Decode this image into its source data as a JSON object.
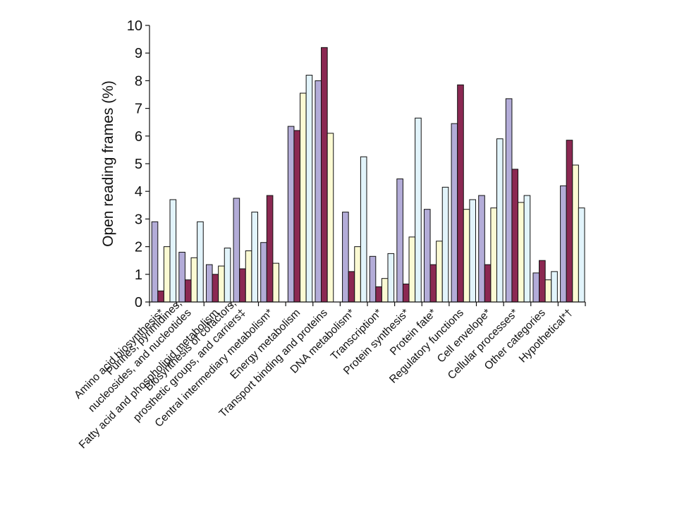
{
  "chart_data": {
    "type": "bar",
    "ylabel": "Open reading frames (%)",
    "ylim": [
      0,
      10
    ],
    "yticks": [
      0,
      1,
      2,
      3,
      4,
      5,
      6,
      7,
      8,
      9,
      10
    ],
    "grid": false,
    "legend": "none",
    "categories": [
      [
        "Amino acid biosynthesis*"
      ],
      [
        "Purines, pyrimidines,",
        "nucleosides, and nucleotides"
      ],
      [
        "Fatty acid and phospholipid metabolism"
      ],
      [
        "Biosynthesis of cofactors,",
        "prosthetic groups, and carriers‡"
      ],
      [
        "Central intermediary metabolism*"
      ],
      [
        "Energy metabolism"
      ],
      [
        "Transport binding and proteins"
      ],
      [
        "DNA metabolism*"
      ],
      [
        "Transcription*"
      ],
      [
        "Protein synthesis*"
      ],
      [
        "Protein fate*"
      ],
      [
        "Regulatory functions"
      ],
      [
        "Cell envelope*"
      ],
      [
        "Cellular processes*"
      ],
      [
        "Other categories"
      ],
      [
        "Hypothetical*†"
      ]
    ],
    "series_colors": [
      "#b3acd8",
      "#8b2852",
      "#fbfad3",
      "#e2f4fb"
    ],
    "series": [
      {
        "values": [
          2.9,
          1.8,
          1.35,
          3.75,
          2.15,
          6.35,
          8.0,
          3.25,
          1.65,
          4.45,
          3.35,
          6.45,
          3.85,
          7.35,
          1.05,
          4.2
        ]
      },
      {
        "values": [
          0.4,
          0.8,
          1.0,
          1.2,
          3.85,
          6.2,
          9.2,
          1.1,
          0.55,
          0.65,
          1.35,
          7.85,
          1.35,
          4.8,
          1.5,
          5.85
        ]
      },
      {
        "values": [
          2.0,
          1.6,
          1.3,
          1.85,
          1.4,
          7.55,
          6.1,
          2.0,
          0.85,
          2.35,
          2.2,
          3.35,
          3.4,
          3.6,
          0.8,
          4.95
        ]
      },
      {
        "values": [
          3.7,
          2.9,
          1.95,
          3.25,
          0,
          8.2,
          0,
          5.25,
          1.75,
          6.65,
          4.15,
          3.7,
          5.9,
          3.85,
          1.1,
          3.4
        ]
      }
    ]
  }
}
